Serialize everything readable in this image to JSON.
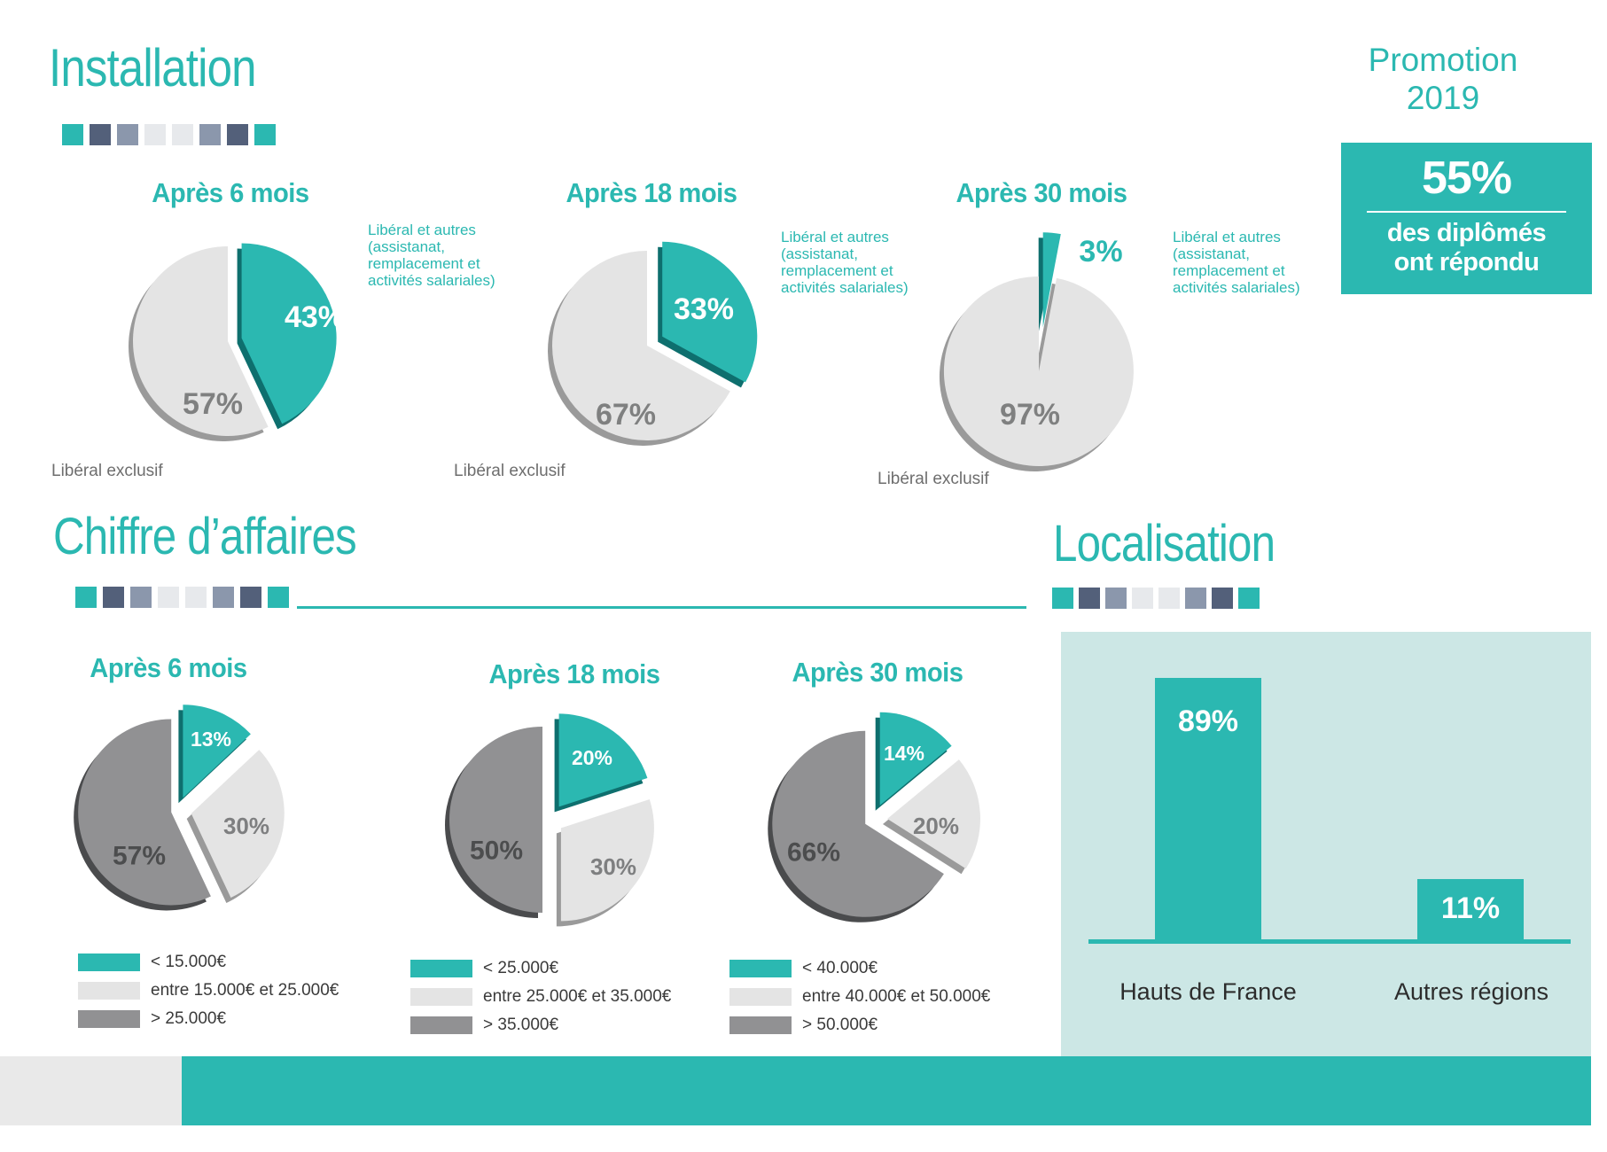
{
  "accent": {
    "teal": "#2bb8b1",
    "slate": "#53607a",
    "blue_gray": "#8b97ac",
    "light_gray": "#e7e9ec"
  },
  "divider_pattern": [
    "teal",
    "slate",
    "blue_gray",
    "light_gray",
    "light_gray",
    "blue_gray",
    "slate",
    "teal"
  ],
  "promotion": {
    "label": "Promotion",
    "year": "2019",
    "stat": "55%",
    "caption_line1": "des diplômés",
    "caption_line2": "ont répondu"
  },
  "chart_data": [
    {
      "type": "pie",
      "group_title": "Installation",
      "pies": [
        {
          "title": "Après 6 mois",
          "note": "Libéral et autres (assistanat, remplacement et activités salariales)",
          "slices": [
            {
              "label": "Libéral et autres",
              "value": 43,
              "color": "#2bb8b1"
            },
            {
              "label": "Libéral exclusif",
              "value": 57,
              "color": "#e4e4e4"
            }
          ]
        },
        {
          "title": "Après 18 mois",
          "note": "Libéral et autres (assistanat, remplacement et activités salariales)",
          "slices": [
            {
              "label": "Libéral et autres",
              "value": 33,
              "color": "#2bb8b1"
            },
            {
              "label": "Libéral exclusif",
              "value": 67,
              "color": "#e4e4e4"
            }
          ]
        },
        {
          "title": "Après 30 mois",
          "note": "Libéral et autres (assistanat, remplacement et activités salariales)",
          "slices": [
            {
              "label": "Libéral et autres",
              "value": 3,
              "color": "#2bb8b1"
            },
            {
              "label": "Libéral exclusif",
              "value": 97,
              "color": "#e4e4e4"
            }
          ]
        }
      ]
    },
    {
      "type": "pie",
      "group_title": "Chiffre d’affaires",
      "pies": [
        {
          "title": "Après 6 mois",
          "slices": [
            {
              "label": "< 15.000€",
              "value": 13,
              "color": "#2bb8b1"
            },
            {
              "label": "entre 15.000€ et 25.000€",
              "value": 30,
              "color": "#e4e4e4"
            },
            {
              "label": "> 25.000€",
              "value": 57,
              "color": "#919193"
            }
          ]
        },
        {
          "title": "Après 18 mois",
          "slices": [
            {
              "label": "< 25.000€",
              "value": 20,
              "color": "#2bb8b1"
            },
            {
              "label": "entre 25.000€ et 35.000€",
              "value": 30,
              "color": "#e4e4e4"
            },
            {
              "label": "> 35.000€",
              "value": 50,
              "color": "#919193"
            }
          ]
        },
        {
          "title": "Après 30 mois",
          "slices": [
            {
              "label": "< 40.000€",
              "value": 14,
              "color": "#2bb8b1"
            },
            {
              "label": "entre 40.000€ et 50.000€",
              "value": 20,
              "color": "#e4e4e4"
            },
            {
              "label": "> 50.000€",
              "value": 66,
              "color": "#919193"
            }
          ]
        }
      ]
    },
    {
      "type": "bar",
      "group_title": "Localisation",
      "categories": [
        "Hauts de France",
        "Autres régions"
      ],
      "values": [
        89,
        11
      ],
      "value_labels": [
        "89%",
        "11%"
      ],
      "bar_color": "#2bb8b1",
      "panel_color": "#cce7e5"
    }
  ]
}
